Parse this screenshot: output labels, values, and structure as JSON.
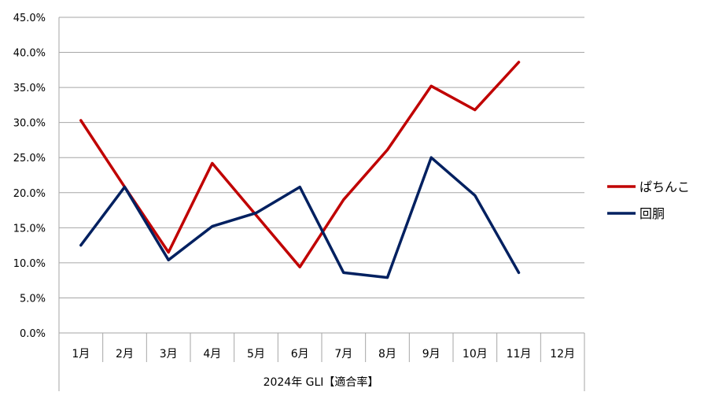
{
  "chart_data": {
    "type": "line",
    "categories": [
      "1月",
      "2月",
      "3月",
      "4月",
      "5月",
      "6月",
      "7月",
      "8月",
      "9月",
      "10月",
      "11月",
      "12月"
    ],
    "series": [
      {
        "name": "ぱちんこ",
        "color": "#c00000",
        "values": [
          30.3,
          20.8,
          11.5,
          24.2,
          16.8,
          9.4,
          19.0,
          26.1,
          35.2,
          31.8,
          38.6,
          null
        ]
      },
      {
        "name": "回胴",
        "color": "#002060",
        "values": [
          12.5,
          20.8,
          10.4,
          15.2,
          17.1,
          20.8,
          8.6,
          7.9,
          25.0,
          19.6,
          8.6,
          null
        ]
      }
    ],
    "xlabel": "2024年 GLI【適合率】",
    "ylabel": "",
    "ylim": [
      0,
      45
    ],
    "yticks": [
      0,
      5,
      10,
      15,
      20,
      25,
      30,
      35,
      40,
      45
    ],
    "ytick_format": "percent_1dp",
    "grid": true,
    "legend_position": "right"
  }
}
